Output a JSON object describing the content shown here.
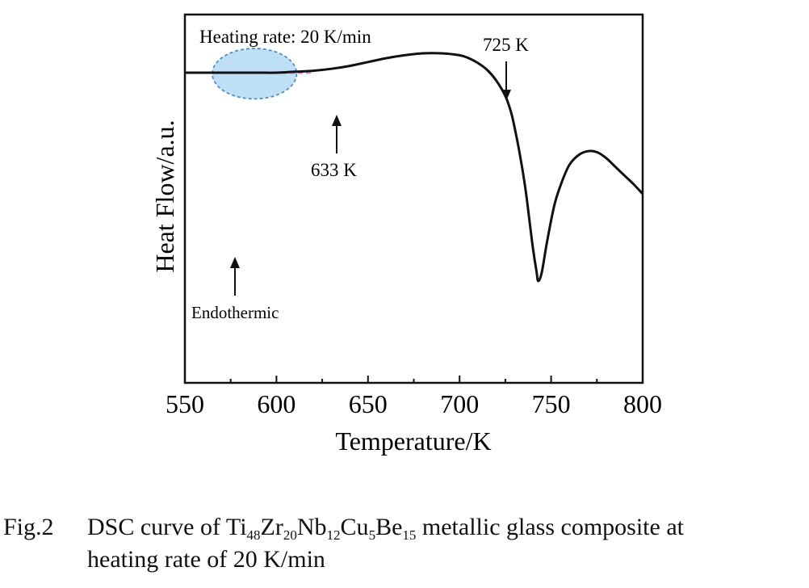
{
  "chart_data": {
    "type": "line",
    "xlabel": "Temperature/K",
    "ylabel": "Heat Flow/a.u.",
    "xlim": [
      550,
      800
    ],
    "x_ticks": [
      "550",
      "600",
      "650",
      "700",
      "750",
      "800"
    ],
    "grid": false,
    "legend": "none",
    "y_ticks": "none",
    "series": [
      {
        "x": [
          550,
          560,
          570,
          580,
          590,
          600,
          610,
          620,
          630,
          640,
          650,
          660,
          670,
          680,
          690,
          700,
          705,
          710,
          715,
          720,
          725,
          728,
          730,
          733,
          736,
          738,
          740,
          742,
          743,
          745,
          748,
          752,
          756,
          760,
          765,
          770,
          775,
          780,
          785,
          790,
          795,
          800
        ],
        "y": [
          0.0,
          0.0,
          0.0,
          0.0,
          0.0,
          0.0,
          0.01,
          0.02,
          0.04,
          0.07,
          0.11,
          0.15,
          0.18,
          0.2,
          0.2,
          0.18,
          0.15,
          0.1,
          0.03,
          -0.08,
          -0.24,
          -0.4,
          -0.56,
          -0.85,
          -1.2,
          -1.5,
          -1.8,
          -2.05,
          -2.15,
          -2.05,
          -1.72,
          -1.35,
          -1.12,
          -0.95,
          -0.85,
          -0.81,
          -0.82,
          -0.88,
          -0.97,
          -1.06,
          -1.15,
          -1.25
        ]
      }
    ],
    "ylim": [
      -3.2,
      0.6
    ],
    "baseline": {
      "x": [
        550,
        620
      ],
      "y": [
        0.0,
        0.0
      ],
      "style": "dashed",
      "color": "#d98ac8"
    },
    "highlight_ellipse": {
      "x_range": [
        565,
        611
      ],
      "y_range": [
        -0.27,
        0.25
      ],
      "fill": "#bfe0f4",
      "stroke": "#4b8fd0"
    },
    "annotations": [
      {
        "text": "Heating rate: 20 K/min"
      },
      {
        "text": "725 K",
        "x": 725
      },
      {
        "text": "633 K",
        "x": 633
      },
      {
        "text": "Endothermic"
      }
    ]
  },
  "caption": {
    "label": "Fig.2",
    "line1_prefix": "DSC curve of Ti",
    "formula": [
      {
        "sub": "48",
        "next": "Zr"
      },
      {
        "sub": "20",
        "next": "Nb"
      },
      {
        "sub": "12",
        "next": "Cu"
      },
      {
        "sub": "5",
        "next": "Be"
      },
      {
        "sub": "15",
        "next": " metallic glass composite at"
      }
    ],
    "line2": "heating rate of 20 K/min"
  }
}
